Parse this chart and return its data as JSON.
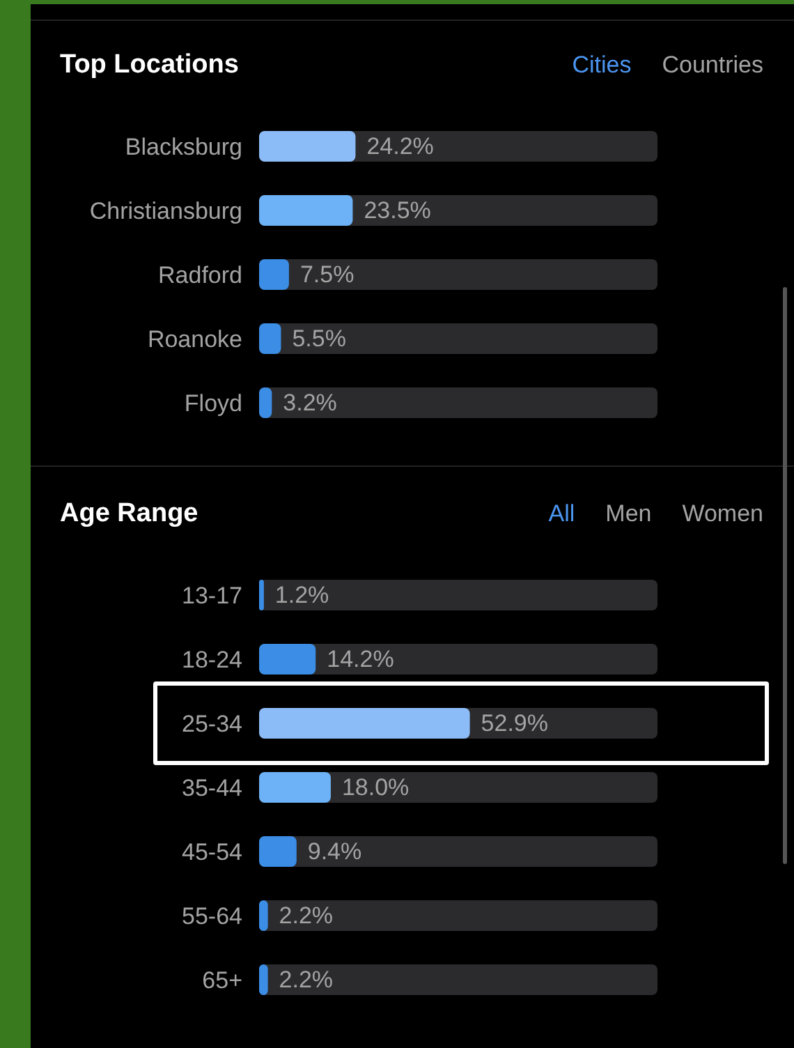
{
  "chart_data": [
    {
      "type": "bar",
      "title": "Top Locations",
      "orientation": "horizontal",
      "annotations": [
        "Cities",
        "Countries"
      ],
      "categories": [
        "Blacksburg",
        "Christiansburg",
        "Radford",
        "Roanoke",
        "Floyd"
      ],
      "values": [
        24.2,
        23.5,
        7.5,
        5.5,
        3.2
      ],
      "colors": [
        "#8cbcf7",
        "#6db2f6",
        "#3b8de6",
        "#3b8de6",
        "#3b8de6"
      ],
      "value_labels": [
        "24.2%",
        "23.5%",
        "7.5%",
        "5.5%",
        "3.2%"
      ],
      "xlim": [
        0,
        100
      ],
      "tick_labels": "y"
    },
    {
      "type": "bar",
      "title": "Age Range",
      "orientation": "horizontal",
      "annotations": [
        "All",
        "Men",
        "Women"
      ],
      "categories": [
        "13-17",
        "18-24",
        "25-34",
        "35-44",
        "45-54",
        "55-64",
        "65+"
      ],
      "values": [
        1.2,
        14.2,
        52.9,
        18.0,
        9.4,
        2.2,
        2.2
      ],
      "colors": [
        "#3b8de6",
        "#3b8de6",
        "#8cbcf7",
        "#6db2f6",
        "#3b8de6",
        "#3b8de6",
        "#3b8de6"
      ],
      "value_labels": [
        "1.2%",
        "14.2%",
        "52.9%",
        "18.0%",
        "9.4%",
        "2.2%",
        "2.2%"
      ],
      "xlim": [
        0,
        100
      ],
      "tick_labels": "y"
    }
  ]
}
